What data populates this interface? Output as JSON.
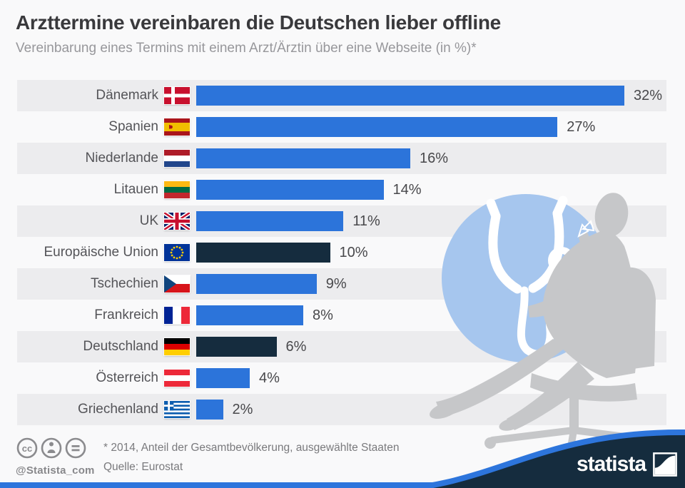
{
  "header": {
    "title": "Arzttermine vereinbaren die Deutschen lieber offline",
    "subtitle": "Vereinbarung eines Termins mit einem Arzt/Ärztin über eine Webseite (in %)*"
  },
  "chart_data": {
    "type": "bar",
    "orientation": "horizontal",
    "title": "Arzttermine vereinbaren die Deutschen lieber offline",
    "subtitle": "Vereinbarung eines Termins mit einem Arzt/Ärztin über eine Webseite (in %)*",
    "unit": "%",
    "xlim": [
      0,
      32
    ],
    "categories": [
      "Dänemark",
      "Spanien",
      "Niederlande",
      "Litauen",
      "UK",
      "Europäische Union",
      "Tschechien",
      "Frankreich",
      "Deutschland",
      "Österreich",
      "Griechenland"
    ],
    "values": [
      32,
      27,
      16,
      14,
      11,
      10,
      9,
      8,
      6,
      4,
      2
    ],
    "value_labels": [
      "32%",
      "27%",
      "16%",
      "14%",
      "11%",
      "10%",
      "9%",
      "8%",
      "6%",
      "4%",
      "2%"
    ],
    "flags": [
      "dk",
      "es",
      "nl",
      "lt",
      "gb",
      "eu",
      "cz",
      "fr",
      "de",
      "at",
      "gr"
    ],
    "highlighted_categories": [
      "Europäische Union",
      "Deutschland"
    ],
    "highlight_indices": [
      5,
      8
    ],
    "colors": {
      "bar": "#2c74da",
      "bar_highlight": "#152c3e",
      "row_alt": "#ececee",
      "background": "#f9f9fa",
      "footer_navy": "#152c3e",
      "footer_blue": "#2d75dc",
      "illustration_circle": "#a6c6ee",
      "illustration_gray": "#c6c7c9"
    },
    "grid": false,
    "legend": false
  },
  "illustration": {
    "description": "doctor silhouette seated on office chair with stethoscope in blue circle"
  },
  "footer": {
    "footnote": "* 2014, Anteil der Gesamtbevölkerung, ausgewählte Staaten",
    "source": "Quelle: Eurostat",
    "handle": "@Statista_com",
    "brand": "statista"
  }
}
